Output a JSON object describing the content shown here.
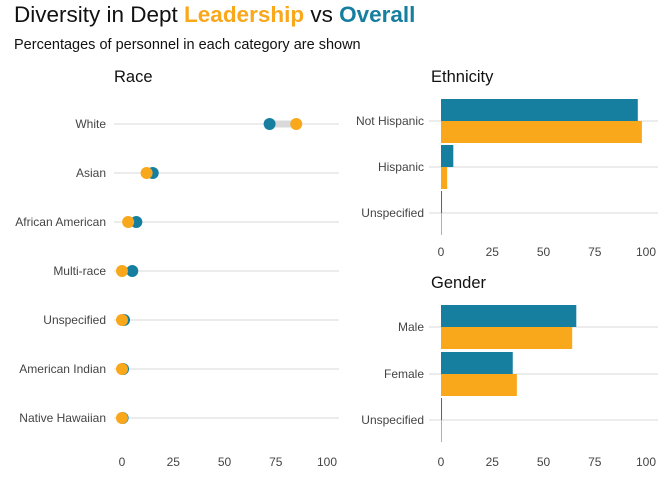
{
  "title": {
    "prefix": "Diversity in Dept ",
    "leadership": "Leadership",
    "vs": " vs ",
    "overall": "Overall"
  },
  "subtitle": "Percentages of personnel in each category are shown",
  "colors": {
    "leadership": "#f9a71b",
    "overall": "#167fa0",
    "segment": "#d9d9d9",
    "grid": "#cccccc"
  },
  "chart_data": [
    {
      "type": "scatter",
      "title": "Race",
      "categories": [
        "White",
        "Asian",
        "African American",
        "Multi-race",
        "Unspecified",
        "American Indian",
        "Native Hawaiian"
      ],
      "series": [
        {
          "key": "overall",
          "values": [
            72,
            15,
            7,
            5,
            1,
            0.5,
            0.3
          ]
        },
        {
          "key": "leadership",
          "values": [
            85,
            12,
            3,
            0,
            0,
            0,
            0
          ]
        }
      ],
      "xlim": [
        0,
        100
      ],
      "xticks": [
        0,
        25,
        50,
        75,
        100
      ]
    },
    {
      "type": "bar",
      "title": "Ethnicity",
      "categories": [
        "Not Hispanic",
        "Hispanic",
        "Unspecified"
      ],
      "series": [
        {
          "key": "overall",
          "values": [
            96,
            6,
            0.5
          ]
        },
        {
          "key": "leadership",
          "values": [
            98,
            3,
            0.3
          ]
        }
      ],
      "xlim": [
        0,
        100
      ],
      "xticks": [
        0,
        25,
        50,
        75,
        100
      ]
    },
    {
      "type": "bar",
      "title": "Gender",
      "categories": [
        "Male",
        "Female",
        "Unspecified"
      ],
      "series": [
        {
          "key": "overall",
          "values": [
            66,
            35,
            0.5
          ]
        },
        {
          "key": "leadership",
          "values": [
            64,
            37,
            0.3
          ]
        }
      ],
      "xlim": [
        0,
        100
      ],
      "xticks": [
        0,
        25,
        50,
        75,
        100
      ]
    }
  ]
}
